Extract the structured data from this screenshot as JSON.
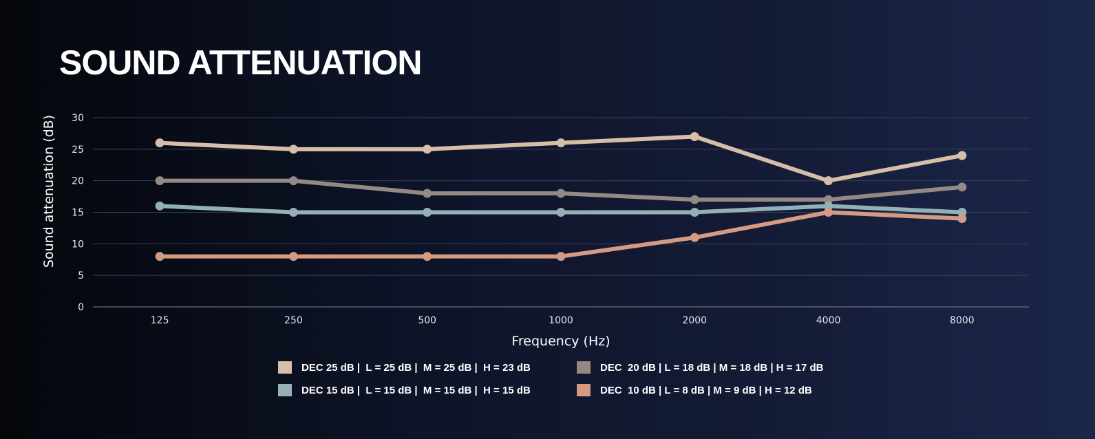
{
  "title": "SOUND ATTENUATION",
  "chart_data": {
    "type": "line",
    "title": "SOUND ATTENUATION",
    "xlabel": "Frequency (Hz)",
    "ylabel": "Sound attenuation (dB)",
    "categories": [
      "125",
      "250",
      "500",
      "1000",
      "2000",
      "4000",
      "8000"
    ],
    "ylim": [
      0,
      30
    ],
    "yticks": [
      0,
      5,
      10,
      15,
      20,
      25,
      30
    ],
    "grid": true,
    "legend_position": "bottom",
    "series": [
      {
        "name": "DEC 25 dB |  L = 25 dB |  M = 25 dB |  H = 23 dB",
        "color": "#d6bea9",
        "values": [
          26,
          25,
          25,
          26,
          27,
          20,
          24
        ]
      },
      {
        "name": "DEC  20 dB | L = 18 dB | M = 18 dB | H = 17 dB",
        "color": "#948983",
        "values": [
          20,
          20,
          18,
          18,
          17,
          17,
          19
        ]
      },
      {
        "name": "DEC 15 dB |  L = 15 dB |  M = 15 dB |  H = 15 dB",
        "color": "#93b0b6",
        "values": [
          16,
          15,
          15,
          15,
          15,
          16,
          15
        ]
      },
      {
        "name": "DEC  10 dB | L = 8 dB | M = 9 dB | H = 12 dB",
        "color": "#d49a82",
        "values": [
          8,
          8,
          8,
          8,
          11,
          15,
          14
        ]
      }
    ]
  }
}
